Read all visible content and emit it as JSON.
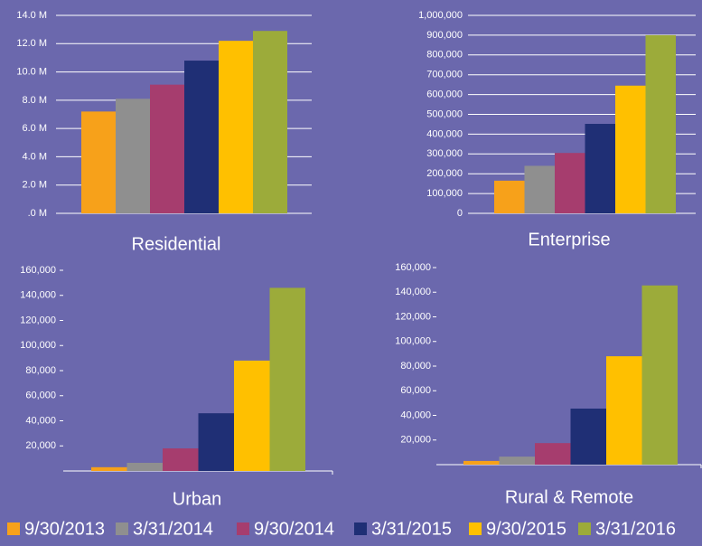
{
  "chart_data": [
    {
      "type": "bar",
      "title": "Residential",
      "values": [
        7.2,
        8.1,
        9.1,
        10.8,
        12.2,
        12.9
      ],
      "ylim": [
        0,
        14
      ],
      "yticks": [
        {
          "value": 0,
          "label": ".0 M"
        },
        {
          "value": 2,
          "label": "2.0 M"
        },
        {
          "value": 4,
          "label": "4.0 M"
        },
        {
          "value": 6,
          "label": "6.0 M"
        },
        {
          "value": 8,
          "label": "8.0 M"
        },
        {
          "value": 10,
          "label": "10.0 M"
        },
        {
          "value": 12,
          "label": "12.0 M"
        },
        {
          "value": 14,
          "label": "14.0 M"
        }
      ],
      "grid": true
    },
    {
      "type": "bar",
      "title": "Enterprise",
      "values": [
        165000,
        240000,
        305000,
        452000,
        645000,
        900000
      ],
      "ylim": [
        0,
        1000000
      ],
      "yticks": [
        0,
        {
          "value": 100000,
          "label": "100,000"
        },
        {
          "value": 200000,
          "label": "200,000"
        },
        {
          "value": 300000,
          "label": "300,000"
        },
        {
          "value": 400000,
          "label": "400,000"
        },
        {
          "value": 500000,
          "label": "500,000"
        },
        {
          "value": 600000,
          "label": "600,000"
        },
        {
          "value": 700000,
          "label": "700,000"
        },
        {
          "value": 800000,
          "label": "800,000"
        },
        {
          "value": 900000,
          "label": "900,000"
        },
        {
          "value": 1000000,
          "label": "1,000,000"
        }
      ],
      "grid": true
    },
    {
      "type": "bar",
      "title": "Urban",
      "values": [
        3000,
        6500,
        18000,
        46000,
        88000,
        146000
      ],
      "ylim": [
        0,
        160000
      ],
      "yticks": [
        {
          "value": 20000,
          "label": "20,000"
        },
        {
          "value": 40000,
          "label": "40,000"
        },
        {
          "value": 60000,
          "label": "60,000"
        },
        {
          "value": 80000,
          "label": "80,000"
        },
        {
          "value": 100000,
          "label": "100,000"
        },
        {
          "value": 120000,
          "label": "120,000"
        },
        {
          "value": 140000,
          "label": "140,000"
        },
        {
          "value": 160000,
          "label": "160,000"
        }
      ],
      "grid": false
    },
    {
      "type": "bar",
      "title": "Rural & Remote",
      "values": [
        3000,
        6500,
        17500,
        45500,
        88000,
        145500
      ],
      "ylim": [
        0,
        160000
      ],
      "yticks": [
        {
          "value": 20000,
          "label": "20,000"
        },
        {
          "value": 40000,
          "label": "40,000"
        },
        {
          "value": 60000,
          "label": "60,000"
        },
        {
          "value": 80000,
          "label": "80,000"
        },
        {
          "value": 100000,
          "label": "100,000"
        },
        {
          "value": 120000,
          "label": "120,000"
        },
        {
          "value": 140000,
          "label": "140,000"
        },
        {
          "value": 160000,
          "label": "160,000"
        }
      ],
      "grid": false
    }
  ],
  "legend": {
    "labels": [
      "9/30/2013",
      "3/31/2014",
      "9/30/2014",
      "3/31/2015",
      "9/30/2015",
      "3/31/2016"
    ],
    "colors": [
      "#f7a11a",
      "#8f8f8f",
      "#a63d6e",
      "#1f2f75",
      "#ffc000",
      "#9cab3a"
    ]
  }
}
